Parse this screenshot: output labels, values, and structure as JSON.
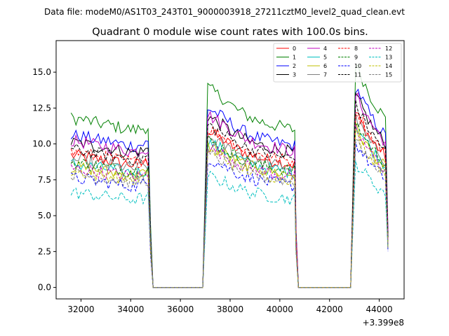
{
  "suptitle": "Data file: modeM0/AS1T03_243T01_9000003918_27211cztM0_level2_quad_clean.evt",
  "chart_data": {
    "type": "line",
    "title": "Quadrant 0 module wise count rates with 100.0s bins.",
    "xlabel": "",
    "ylabel": "",
    "x_offset_label": "+3.399e8",
    "xlim": [
      31000,
      45000
    ],
    "ylim": [
      -0.8,
      17.2
    ],
    "xticks": [
      32000,
      34000,
      36000,
      38000,
      40000,
      42000,
      44000
    ],
    "yticks": [
      0.0,
      2.5,
      5.0,
      7.5,
      10.0,
      12.5,
      15.0
    ],
    "ytick_labels": [
      "0.0",
      "2.5",
      "5.0",
      "7.5",
      "10.0",
      "12.5",
      "15.0"
    ],
    "legend_position": "upper right",
    "segments": [
      {
        "start": 31600,
        "end": 34700,
        "decay_end": 34800,
        "level": "high",
        "trend": [
          1.0,
          0.99,
          0.97,
          0.96,
          0.94,
          0.93,
          0.95
        ]
      },
      {
        "start": 34900,
        "end": 36900,
        "level": "zero"
      },
      {
        "start": 37100,
        "end": 40600,
        "decay_end": 40650,
        "level": "high",
        "trend": [
          1.18,
          1.12,
          1.05,
          1.0,
          0.97,
          0.95,
          0.93
        ]
      },
      {
        "start": 40750,
        "end": 42850,
        "level": "zero"
      },
      {
        "start": 43050,
        "end": 44300,
        "decay_end": 44350,
        "level": "high",
        "trend": [
          1.32,
          1.22,
          1.12,
          1.05,
          0.98
        ]
      }
    ],
    "series": [
      {
        "name": "0",
        "color": "#ff0000",
        "dash": "solid",
        "base": 9.2
      },
      {
        "name": "1",
        "color": "#008000",
        "dash": "solid",
        "base": 11.8
      },
      {
        "name": "2",
        "color": "#0000ff",
        "dash": "solid",
        "base": 10.6
      },
      {
        "name": "3",
        "color": "#000000",
        "dash": "solid",
        "base": 10.1
      },
      {
        "name": "4",
        "color": "#bf00bf",
        "dash": "solid",
        "base": 10.2
      },
      {
        "name": "5",
        "color": "#00bfbf",
        "dash": "solid",
        "base": 8.6
      },
      {
        "name": "6",
        "color": "#bfbf00",
        "dash": "solid",
        "base": 8.4
      },
      {
        "name": "7",
        "color": "#808080",
        "dash": "solid",
        "base": 8.9
      },
      {
        "name": "8",
        "color": "#ff0000",
        "dash": "dashed",
        "base": 9.4
      },
      {
        "name": "9",
        "color": "#008000",
        "dash": "dashed",
        "base": 8.7
      },
      {
        "name": "10",
        "color": "#0000ff",
        "dash": "dashed",
        "base": 7.6
      },
      {
        "name": "11",
        "color": "#000000",
        "dash": "dashed",
        "base": 9.6
      },
      {
        "name": "12",
        "color": "#bf00bf",
        "dash": "dashed",
        "base": 8.3
      },
      {
        "name": "13",
        "color": "#00bfbf",
        "dash": "dashed",
        "base": 6.6
      },
      {
        "name": "14",
        "color": "#bfbf00",
        "dash": "dashed",
        "base": 8.1
      },
      {
        "name": "15",
        "color": "#808080",
        "dash": "dashed",
        "base": 7.9
      }
    ]
  }
}
